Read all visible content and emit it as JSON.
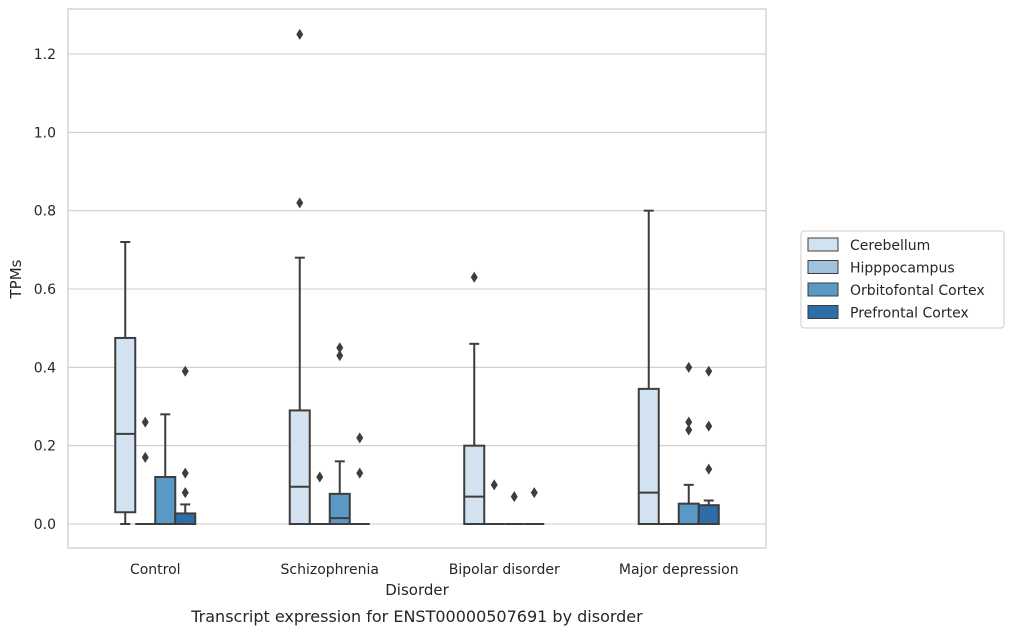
{
  "chart_data": {
    "type": "boxplot",
    "caption": "Transcript expression for ENST00000507691 by disorder",
    "xlabel": "Disorder",
    "ylabel": "TPMs",
    "ylim": [
      -0.06,
      1.32
    ],
    "yticks": [
      0.0,
      0.2,
      0.4,
      0.6,
      0.8,
      1.0,
      1.2
    ],
    "ytick_labels": [
      "0.0",
      "0.2",
      "0.4",
      "0.6",
      "0.8",
      "1.0",
      "1.2"
    ],
    "grid": "horizontal",
    "legend_position": "right",
    "categories": [
      "Control",
      "Schizophrenia",
      "Bipolar disorder",
      "Major depression"
    ],
    "series": [
      {
        "name": "Cerebellum",
        "color": "#d3e2f0",
        "boxes": [
          {
            "q1": 0.03,
            "median": 0.23,
            "q3": 0.475,
            "whisker_low": 0.0,
            "whisker_high": 0.72,
            "outliers": []
          },
          {
            "q1": 0.0,
            "median": 0.095,
            "q3": 0.29,
            "whisker_low": 0.0,
            "whisker_high": 0.68,
            "outliers": [
              0.82,
              1.25
            ]
          },
          {
            "q1": 0.0,
            "median": 0.07,
            "q3": 0.2,
            "whisker_low": 0.0,
            "whisker_high": 0.46,
            "outliers": [
              0.63
            ]
          },
          {
            "q1": 0.0,
            "median": 0.08,
            "q3": 0.345,
            "whisker_low": 0.0,
            "whisker_high": 0.8,
            "outliers": []
          }
        ]
      },
      {
        "name": "Hipppocampus",
        "color": "#9fc3df",
        "boxes": [
          {
            "q1": 0.0,
            "median": 0.0,
            "q3": 0.0,
            "whisker_low": 0.0,
            "whisker_high": 0.0,
            "outliers": [
              0.17,
              0.26
            ]
          },
          {
            "q1": 0.0,
            "median": 0.0,
            "q3": 0.0,
            "whisker_low": 0.0,
            "whisker_high": 0.0,
            "outliers": [
              0.12
            ]
          },
          {
            "q1": 0.0,
            "median": 0.0,
            "q3": 0.0,
            "whisker_low": 0.0,
            "whisker_high": 0.0,
            "outliers": [
              0.1
            ]
          },
          {
            "q1": 0.0,
            "median": 0.0,
            "q3": 0.0,
            "whisker_low": 0.0,
            "whisker_high": 0.0,
            "outliers": []
          }
        ]
      },
      {
        "name": "Orbitofontal Cortex",
        "color": "#5a99c5",
        "boxes": [
          {
            "q1": 0.0,
            "median": 0.0,
            "q3": 0.12,
            "whisker_low": 0.0,
            "whisker_high": 0.28,
            "outliers": []
          },
          {
            "q1": 0.0,
            "median": 0.015,
            "q3": 0.077,
            "whisker_low": 0.0,
            "whisker_high": 0.16,
            "outliers": [
              0.43,
              0.45
            ]
          },
          {
            "q1": 0.0,
            "median": 0.0,
            "q3": 0.0,
            "whisker_low": 0.0,
            "whisker_high": 0.0,
            "outliers": [
              0.07
            ]
          },
          {
            "q1": 0.0,
            "median": 0.0,
            "q3": 0.052,
            "whisker_low": 0.0,
            "whisker_high": 0.1,
            "outliers": [
              0.24,
              0.26,
              0.4
            ]
          }
        ]
      },
      {
        "name": "Prefrontal Cortex",
        "color": "#2d6ea9",
        "boxes": [
          {
            "q1": 0.0,
            "median": 0.0,
            "q3": 0.027,
            "whisker_low": 0.0,
            "whisker_high": 0.05,
            "outliers": [
              0.08,
              0.13,
              0.39
            ]
          },
          {
            "q1": 0.0,
            "median": 0.0,
            "q3": 0.0,
            "whisker_low": 0.0,
            "whisker_high": 0.0,
            "outliers": [
              0.13,
              0.22
            ]
          },
          {
            "q1": 0.0,
            "median": 0.0,
            "q3": 0.0,
            "whisker_low": 0.0,
            "whisker_high": 0.0,
            "outliers": [
              0.08
            ]
          },
          {
            "q1": 0.0,
            "median": 0.0,
            "q3": 0.048,
            "whisker_low": 0.0,
            "whisker_high": 0.06,
            "outliers": [
              0.14,
              0.25,
              0.39
            ]
          }
        ]
      }
    ]
  }
}
